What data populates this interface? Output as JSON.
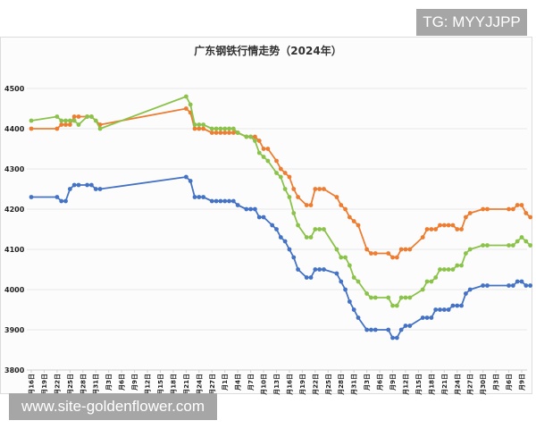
{
  "watermarks": {
    "top": "TG: MYYJJPP",
    "bottom": "www.site-goldenflower.com"
  },
  "chart_data": {
    "type": "line",
    "title": "广东钢铁行情走势（2024年）",
    "xlabel": "",
    "ylabel": "",
    "ylim": [
      3800,
      4500
    ],
    "yticks": [
      3800,
      3900,
      4000,
      4100,
      4200,
      4300,
      4400,
      4500
    ],
    "grid": true,
    "legend": "none",
    "x_tick_labels": [
      "16日",
      "19日",
      "22日",
      "25日",
      "28日",
      "31日",
      "3日",
      "6日",
      "9日",
      "12日",
      "15日",
      "18日",
      "21日",
      "24日",
      "27日",
      "1日",
      "4日",
      "7日",
      "10日",
      "13日",
      "16日",
      "19日",
      "22日",
      "25日",
      "28日",
      "31日",
      "3日",
      "6日",
      "9日",
      "12日",
      "15日",
      "18日",
      "21日",
      "24日",
      "27日",
      "30日",
      "3日",
      "6日",
      "9日"
    ],
    "series": [
      {
        "name": "orange",
        "color": "#ed7d31",
        "points": [
          [
            0,
            4400
          ],
          [
            6,
            4400
          ],
          [
            7,
            4410
          ],
          [
            8,
            4410
          ],
          [
            9,
            4410
          ],
          [
            10,
            4430
          ],
          [
            11,
            4430
          ],
          [
            13,
            4430
          ],
          [
            14,
            4430
          ],
          [
            16,
            4410
          ],
          [
            36,
            4450
          ],
          [
            37,
            4440
          ],
          [
            38,
            4400
          ],
          [
            39,
            4400
          ],
          [
            40,
            4400
          ],
          [
            42,
            4390
          ],
          [
            43,
            4390
          ],
          [
            44,
            4390
          ],
          [
            45,
            4390
          ],
          [
            46,
            4390
          ],
          [
            47,
            4390
          ],
          [
            48,
            4390
          ],
          [
            50,
            4380
          ],
          [
            51,
            4380
          ],
          [
            52,
            4380
          ],
          [
            53,
            4370
          ],
          [
            54,
            4350
          ],
          [
            55,
            4350
          ],
          [
            57,
            4320
          ],
          [
            58,
            4300
          ],
          [
            59,
            4290
          ],
          [
            60,
            4280
          ],
          [
            61,
            4250
          ],
          [
            62,
            4230
          ],
          [
            64,
            4210
          ],
          [
            65,
            4210
          ],
          [
            66,
            4250
          ],
          [
            67,
            4250
          ],
          [
            68,
            4250
          ],
          [
            71,
            4230
          ],
          [
            72,
            4210
          ],
          [
            73,
            4200
          ],
          [
            74,
            4180
          ],
          [
            75,
            4170
          ],
          [
            76,
            4160
          ],
          [
            78,
            4100
          ],
          [
            79,
            4090
          ],
          [
            80,
            4090
          ],
          [
            83,
            4090
          ],
          [
            84,
            4080
          ],
          [
            85,
            4080
          ],
          [
            86,
            4100
          ],
          [
            87,
            4100
          ],
          [
            88,
            4100
          ],
          [
            91,
            4130
          ],
          [
            92,
            4150
          ],
          [
            93,
            4150
          ],
          [
            94,
            4150
          ],
          [
            95,
            4160
          ],
          [
            96,
            4160
          ],
          [
            97,
            4160
          ],
          [
            98,
            4160
          ],
          [
            99,
            4150
          ],
          [
            100,
            4150
          ],
          [
            101,
            4180
          ],
          [
            102,
            4190
          ],
          [
            105,
            4200
          ],
          [
            106,
            4200
          ],
          [
            111,
            4200
          ],
          [
            112,
            4200
          ],
          [
            113,
            4210
          ],
          [
            114,
            4210
          ],
          [
            115,
            4190
          ],
          [
            116,
            4180
          ]
        ]
      },
      {
        "name": "green",
        "color": "#8bc34a",
        "points": [
          [
            0,
            4420
          ],
          [
            6,
            4430
          ],
          [
            7,
            4420
          ],
          [
            8,
            4420
          ],
          [
            9,
            4420
          ],
          [
            10,
            4420
          ],
          [
            11,
            4410
          ],
          [
            13,
            4430
          ],
          [
            14,
            4430
          ],
          [
            15,
            4420
          ],
          [
            16,
            4400
          ],
          [
            36,
            4480
          ],
          [
            37,
            4460
          ],
          [
            38,
            4410
          ],
          [
            39,
            4410
          ],
          [
            40,
            4410
          ],
          [
            42,
            4400
          ],
          [
            43,
            4400
          ],
          [
            44,
            4400
          ],
          [
            45,
            4400
          ],
          [
            46,
            4400
          ],
          [
            47,
            4400
          ],
          [
            48,
            4390
          ],
          [
            50,
            4380
          ],
          [
            51,
            4380
          ],
          [
            52,
            4370
          ],
          [
            53,
            4340
          ],
          [
            54,
            4330
          ],
          [
            55,
            4320
          ],
          [
            57,
            4290
          ],
          [
            58,
            4280
          ],
          [
            59,
            4250
          ],
          [
            60,
            4230
          ],
          [
            61,
            4190
          ],
          [
            62,
            4160
          ],
          [
            64,
            4130
          ],
          [
            65,
            4130
          ],
          [
            66,
            4150
          ],
          [
            67,
            4150
          ],
          [
            68,
            4150
          ],
          [
            71,
            4100
          ],
          [
            72,
            4080
          ],
          [
            73,
            4080
          ],
          [
            74,
            4060
          ],
          [
            75,
            4030
          ],
          [
            76,
            4020
          ],
          [
            78,
            3990
          ],
          [
            79,
            3980
          ],
          [
            80,
            3980
          ],
          [
            83,
            3980
          ],
          [
            84,
            3960
          ],
          [
            85,
            3960
          ],
          [
            86,
            3980
          ],
          [
            87,
            3980
          ],
          [
            88,
            3980
          ],
          [
            91,
            4000
          ],
          [
            92,
            4020
          ],
          [
            93,
            4020
          ],
          [
            94,
            4030
          ],
          [
            95,
            4050
          ],
          [
            96,
            4050
          ],
          [
            97,
            4050
          ],
          [
            98,
            4050
          ],
          [
            99,
            4060
          ],
          [
            100,
            4060
          ],
          [
            101,
            4090
          ],
          [
            102,
            4100
          ],
          [
            105,
            4110
          ],
          [
            106,
            4110
          ],
          [
            111,
            4110
          ],
          [
            112,
            4110
          ],
          [
            113,
            4120
          ],
          [
            114,
            4130
          ],
          [
            115,
            4120
          ],
          [
            116,
            4110
          ]
        ]
      },
      {
        "name": "blue",
        "color": "#4472c4",
        "points": [
          [
            0,
            4230
          ],
          [
            6,
            4230
          ],
          [
            7,
            4220
          ],
          [
            8,
            4220
          ],
          [
            9,
            4250
          ],
          [
            10,
            4260
          ],
          [
            11,
            4260
          ],
          [
            13,
            4260
          ],
          [
            14,
            4260
          ],
          [
            15,
            4250
          ],
          [
            16,
            4250
          ],
          [
            36,
            4280
          ],
          [
            37,
            4270
          ],
          [
            38,
            4230
          ],
          [
            39,
            4230
          ],
          [
            40,
            4230
          ],
          [
            42,
            4220
          ],
          [
            43,
            4220
          ],
          [
            44,
            4220
          ],
          [
            45,
            4220
          ],
          [
            46,
            4220
          ],
          [
            47,
            4220
          ],
          [
            48,
            4210
          ],
          [
            50,
            4200
          ],
          [
            51,
            4200
          ],
          [
            52,
            4200
          ],
          [
            53,
            4180
          ],
          [
            54,
            4180
          ],
          [
            56,
            4160
          ],
          [
            57,
            4150
          ],
          [
            58,
            4130
          ],
          [
            59,
            4120
          ],
          [
            60,
            4100
          ],
          [
            61,
            4080
          ],
          [
            62,
            4050
          ],
          [
            64,
            4030
          ],
          [
            65,
            4030
          ],
          [
            66,
            4050
          ],
          [
            67,
            4050
          ],
          [
            68,
            4050
          ],
          [
            71,
            4040
          ],
          [
            72,
            4020
          ],
          [
            73,
            4000
          ],
          [
            74,
            3970
          ],
          [
            75,
            3950
          ],
          [
            76,
            3930
          ],
          [
            78,
            3900
          ],
          [
            79,
            3900
          ],
          [
            80,
            3900
          ],
          [
            83,
            3900
          ],
          [
            84,
            3880
          ],
          [
            85,
            3880
          ],
          [
            86,
            3900
          ],
          [
            87,
            3910
          ],
          [
            88,
            3910
          ],
          [
            91,
            3930
          ],
          [
            92,
            3930
          ],
          [
            93,
            3930
          ],
          [
            94,
            3950
          ],
          [
            95,
            3950
          ],
          [
            96,
            3950
          ],
          [
            97,
            3950
          ],
          [
            98,
            3960
          ],
          [
            99,
            3960
          ],
          [
            100,
            3960
          ],
          [
            101,
            3990
          ],
          [
            102,
            4000
          ],
          [
            105,
            4010
          ],
          [
            106,
            4010
          ],
          [
            111,
            4010
          ],
          [
            112,
            4010
          ],
          [
            113,
            4020
          ],
          [
            114,
            4020
          ],
          [
            115,
            4010
          ],
          [
            116,
            4010
          ]
        ]
      }
    ]
  }
}
